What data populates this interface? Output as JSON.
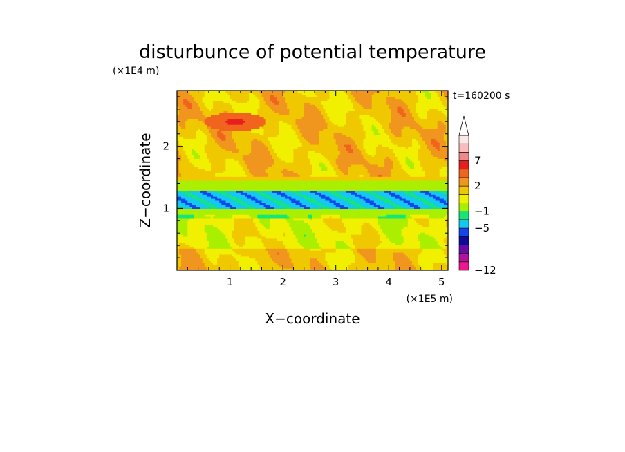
{
  "chart_data": {
    "type": "heatmap",
    "title": "disturbunce of potential temperature",
    "xlabel": "X−coordinate",
    "ylabel": "Z−coordinate",
    "x_unit": "(×1E5 m)",
    "y_unit": "(×1E4 m)",
    "time_label": "t=160200 s",
    "xlim": [
      0,
      5.12
    ],
    "ylim": [
      0,
      2.9
    ],
    "x_ticks": [
      1,
      2,
      3,
      4,
      5
    ],
    "y_ticks": [
      1,
      2
    ],
    "colorbar": {
      "tick_labels": [
        "7",
        "2",
        "−1",
        "−5",
        "−12"
      ],
      "colors": [
        "#f0168c",
        "#b3109e",
        "#6a0aa8",
        "#0c0c9a",
        "#1446f0",
        "#14c8f0",
        "#14e678",
        "#aaee00",
        "#f0f000",
        "#f0c800",
        "#f0961e",
        "#f0641e",
        "#e61e1e",
        "#f08a8a",
        "#f8bcbc",
        "#fde6e6"
      ]
    },
    "field_bands": [
      {
        "z_range": [
          0.0,
          0.35
        ],
        "dominant": "yellow/green",
        "level": 1
      },
      {
        "z_range": [
          0.35,
          0.85
        ],
        "dominant": "green/cyan",
        "level": 0
      },
      {
        "z_range": [
          0.85,
          1.0
        ],
        "dominant": "cyan",
        "level": -1
      },
      {
        "z_range": [
          1.0,
          1.3
        ],
        "dominant": "blue",
        "level": -3
      },
      {
        "z_range": [
          1.3,
          1.45
        ],
        "dominant": "cyan",
        "level": -1
      },
      {
        "z_range": [
          1.45,
          2.9
        ],
        "dominant": "yellow",
        "level": 1
      }
    ]
  }
}
